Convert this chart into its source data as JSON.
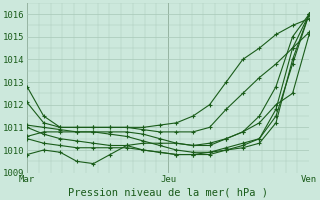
{
  "bg_color": "#cce8dc",
  "grid_color": "#a8c8b8",
  "line_color": "#1a5c1a",
  "marker_color": "#1a5c1a",
  "title": "Pression niveau de la mer( hPa )",
  "ylim": [
    1009.0,
    1016.5
  ],
  "yticks": [
    1009,
    1010,
    1011,
    1012,
    1013,
    1014,
    1015,
    1016
  ],
  "xtick_labels": [
    "Mar",
    "Jeu",
    "Ven"
  ],
  "xtick_positions": [
    0,
    12,
    24
  ],
  "series": [
    [
      1012.8,
      1011.5,
      1011.0,
      1011.0,
      1011.0,
      1011.0,
      1011.0,
      1011.0,
      1011.1,
      1011.2,
      1011.5,
      1012.0,
      1013.0,
      1014.0,
      1014.5,
      1015.1,
      1015.5,
      1015.8
    ],
    [
      1012.1,
      1011.2,
      1011.0,
      1011.0,
      1011.0,
      1011.0,
      1011.0,
      1010.9,
      1010.8,
      1010.8,
      1010.8,
      1011.0,
      1011.8,
      1012.5,
      1013.2,
      1013.8,
      1014.5,
      1015.2
    ],
    [
      1011.1,
      1011.0,
      1010.9,
      1010.8,
      1010.8,
      1010.8,
      1010.8,
      1010.7,
      1010.5,
      1010.3,
      1010.2,
      1010.2,
      1010.5,
      1010.8,
      1011.2,
      1012.0,
      1012.5,
      1015.1
    ],
    [
      1010.6,
      1010.8,
      1010.8,
      1010.8,
      1010.8,
      1010.7,
      1010.6,
      1010.4,
      1010.2,
      1010.0,
      1009.9,
      1009.9,
      1010.1,
      1010.3,
      1010.5,
      1011.5,
      1013.8,
      1016.0
    ],
    [
      1011.0,
      1010.7,
      1010.5,
      1010.4,
      1010.3,
      1010.2,
      1010.2,
      1010.0,
      1009.9,
      1009.8,
      1009.8,
      1009.9,
      1010.0,
      1010.1,
      1010.3,
      1011.2,
      1014.0,
      1016.0
    ],
    [
      1010.5,
      1010.3,
      1010.2,
      1010.1,
      1010.1,
      1010.1,
      1010.1,
      1010.0,
      1009.9,
      1009.8,
      1009.8,
      1009.8,
      1010.0,
      1010.2,
      1010.5,
      1011.8,
      1014.5,
      1016.0
    ],
    [
      1009.8,
      1010.0,
      1009.9,
      1009.5,
      1009.4,
      1009.8,
      1010.2,
      1010.3,
      1010.3,
      1010.3,
      1010.2,
      1010.3,
      1010.5,
      1010.8,
      1011.5,
      1012.8,
      1015.0,
      1016.0
    ]
  ],
  "n_points": 18,
  "x_end": 24
}
